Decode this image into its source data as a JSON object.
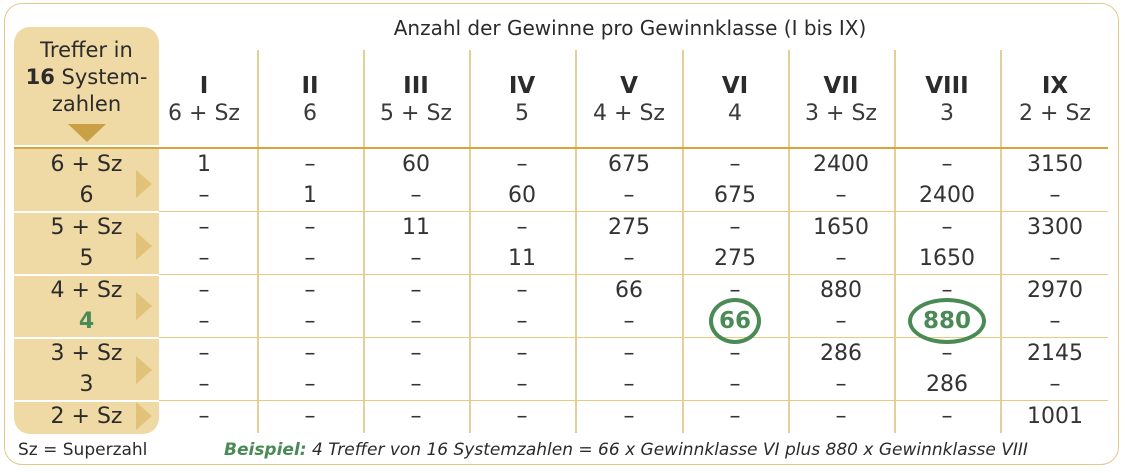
{
  "title": "Anzahl der Gewinne pro Gewinnklasse (I bis IX)",
  "row_header": {
    "line1": "Treffer in",
    "line2_bold": "16",
    "line2_rest": " System-",
    "line3": "zahlen"
  },
  "columns": [
    {
      "roman": "I",
      "combo": "6 + Sz"
    },
    {
      "roman": "II",
      "combo": "6"
    },
    {
      "roman": "III",
      "combo": "5 + Sz"
    },
    {
      "roman": "IV",
      "combo": "5"
    },
    {
      "roman": "V",
      "combo": "4 + Sz"
    },
    {
      "roman": "VI",
      "combo": "4"
    },
    {
      "roman": "VII",
      "combo": "3 + Sz"
    },
    {
      "roman": "VIII",
      "combo": "3"
    },
    {
      "roman": "IX",
      "combo": "2 + Sz"
    }
  ],
  "rows": [
    {
      "label": "6 + Sz",
      "cells": [
        "1",
        "–",
        "60",
        "–",
        "675",
        "–",
        "2400",
        "–",
        "3150"
      ]
    },
    {
      "label": "6",
      "cells": [
        "–",
        "1",
        "–",
        "60",
        "–",
        "675",
        "–",
        "2400",
        "–"
      ]
    },
    {
      "label": "5 + Sz",
      "cells": [
        "–",
        "–",
        "11",
        "–",
        "275",
        "–",
        "1650",
        "–",
        "3300"
      ]
    },
    {
      "label": "5",
      "cells": [
        "–",
        "–",
        "–",
        "11",
        "–",
        "275",
        "–",
        "1650",
        "–"
      ]
    },
    {
      "label": "4 + Sz",
      "cells": [
        "–",
        "–",
        "–",
        "–",
        "66",
        "–",
        "880",
        "–",
        "2970"
      ]
    },
    {
      "label": "4",
      "cells": [
        "–",
        "–",
        "–",
        "–",
        "–",
        "66",
        "–",
        "880",
        "–"
      ]
    },
    {
      "label": "3 + Sz",
      "cells": [
        "–",
        "–",
        "–",
        "–",
        "–",
        "–",
        "286",
        "–",
        "2145"
      ]
    },
    {
      "label": "3",
      "cells": [
        "–",
        "–",
        "–",
        "–",
        "–",
        "–",
        "–",
        "286",
        "–"
      ]
    },
    {
      "label": "2 + Sz",
      "cells": [
        "–",
        "–",
        "–",
        "–",
        "–",
        "–",
        "–",
        "–",
        "1001"
      ]
    }
  ],
  "footer": {
    "legend": "Sz = Superzahl",
    "example_label": "Beispiel:",
    "example_text": " 4 Treffer von 16 Systemzahlen = 66 x Gewinnklasse VI plus 880 x Gewinnklasse VIII"
  },
  "colors": {
    "gold_light": "#efd9a4",
    "gold_dark": "#c9a045",
    "highlight_green": "#4a8a55"
  }
}
